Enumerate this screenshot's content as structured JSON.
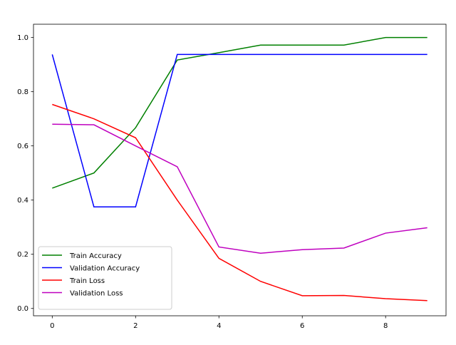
{
  "chart_data": {
    "type": "line",
    "title": "",
    "xlabel": "",
    "ylabel": "",
    "x": [
      0,
      1,
      2,
      3,
      4,
      5,
      6,
      7,
      8,
      9
    ],
    "xlim": [
      -0.45,
      9.45
    ],
    "ylim": [
      -0.027,
      1.049
    ],
    "xticks": [
      "0",
      "2",
      "4",
      "6",
      "8"
    ],
    "xtick_values": [
      0,
      2,
      4,
      6,
      8
    ],
    "yticks": [
      "0.0",
      "0.2",
      "0.4",
      "0.6",
      "0.8",
      "1.0"
    ],
    "ytick_values": [
      0,
      0.2,
      0.4,
      0.6,
      0.8,
      1.0
    ],
    "grid": false,
    "legend_position": "lower-left",
    "series": [
      {
        "name": "Train Accuracy",
        "color": "#008000",
        "values": [
          0.444,
          0.5,
          0.667,
          0.917,
          0.944,
          0.972,
          0.972,
          0.972,
          1.0,
          1.0
        ]
      },
      {
        "name": "Validation Accuracy",
        "color": "#0000ff",
        "values": [
          0.9375,
          0.375,
          0.375,
          0.9375,
          0.9375,
          0.9375,
          0.9375,
          0.9375,
          0.9375,
          0.9375
        ]
      },
      {
        "name": "Train Loss",
        "color": "#ff0000",
        "values": [
          0.753,
          0.7,
          0.63,
          0.4,
          0.185,
          0.1,
          0.047,
          0.048,
          0.036,
          0.029
        ]
      },
      {
        "name": "Validation Loss",
        "color": "#bf00bf",
        "values": [
          0.68,
          0.678,
          0.6,
          0.523,
          0.227,
          0.204,
          0.217,
          0.223,
          0.278,
          0.298
        ]
      }
    ]
  }
}
